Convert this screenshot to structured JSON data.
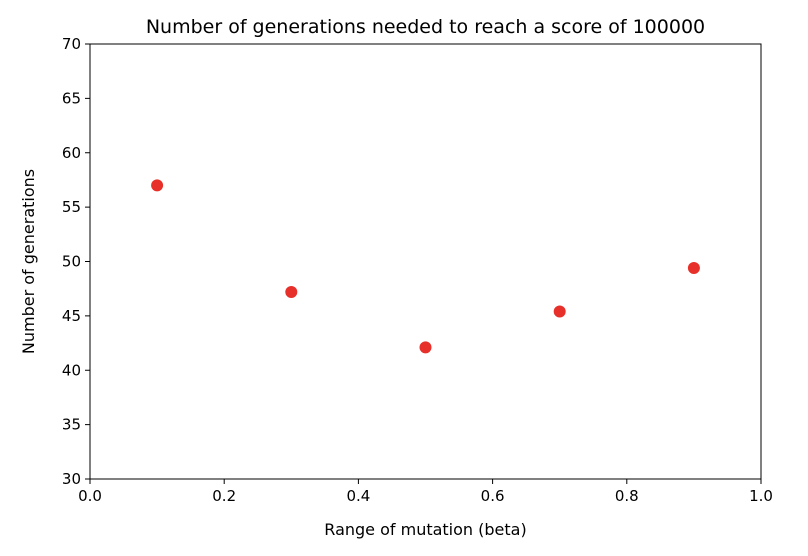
{
  "chart_data": {
    "type": "scatter",
    "title": "Number of generations needed to reach a score of 100000",
    "xlabel": "Range of mutation (beta)",
    "ylabel": "Number of generations",
    "xlim": [
      0.0,
      1.0
    ],
    "ylim": [
      30,
      70
    ],
    "xticks": [
      "0.0",
      "0.2",
      "0.4",
      "0.6",
      "0.8",
      "1.0"
    ],
    "yticks": [
      "30",
      "35",
      "40",
      "45",
      "50",
      "55",
      "60",
      "65",
      "70"
    ],
    "grid": false,
    "series": [
      {
        "color": "#e8302a",
        "x": [
          0.1,
          0.3,
          0.5,
          0.7,
          0.9
        ],
        "y": [
          57.0,
          47.2,
          42.1,
          45.4,
          49.4
        ]
      }
    ]
  }
}
